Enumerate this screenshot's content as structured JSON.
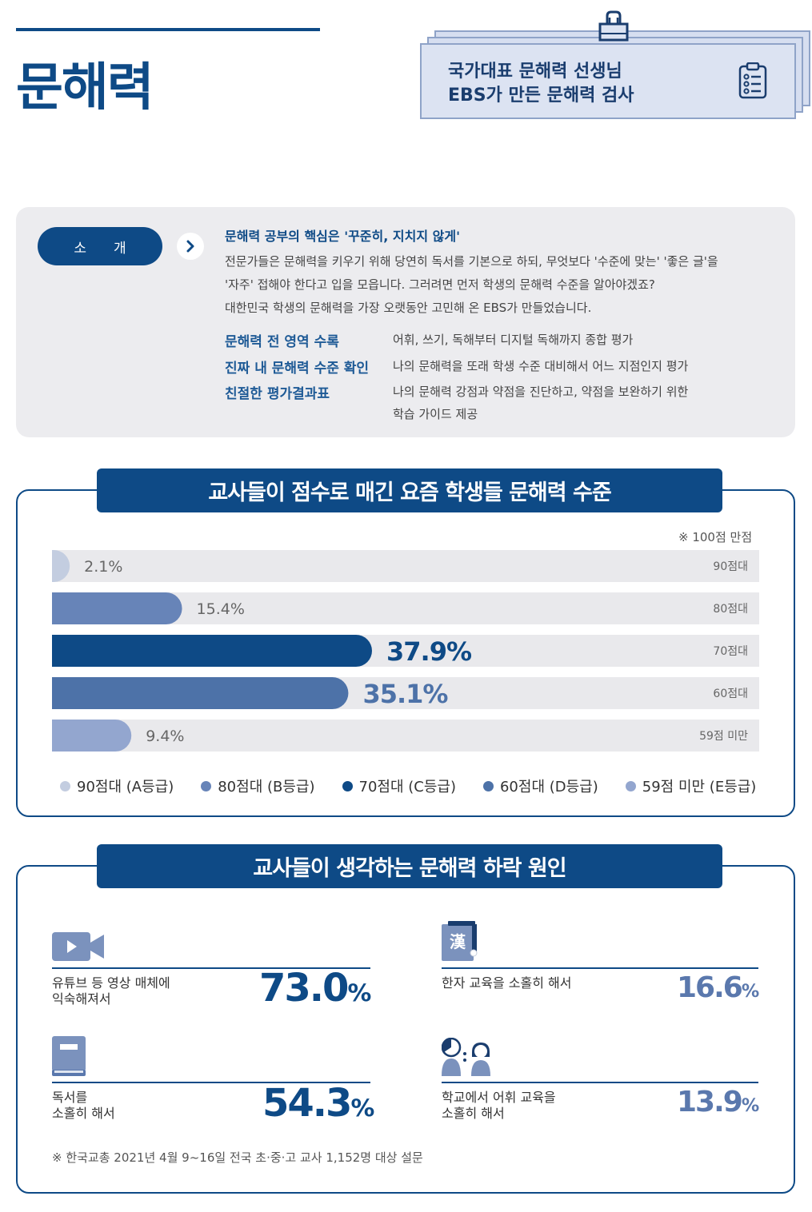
{
  "header": {
    "title": "문해력",
    "note_line1": "국가대표 문해력 선생님",
    "note_line2": "EBS가 만든 문해력 검사"
  },
  "intro": {
    "pill_label": "소개",
    "headline": "문해력 공부의 핵심은 '꾸준히, 지치지 않게'",
    "body_line1": "전문가들은 문해력을 키우기 위해 당연히 독서를 기본으로 하되, 무엇보다 '수준에 맞는'  '좋은 글'을",
    "body_line2": "'자주' 접해야 한다고 입을 모읍니다. 그러려면 먼저 학생의 문해력 수준을 알아야겠죠?",
    "body_line3": "대한민국 학생의 문해력을 가장 오랫동안 고민해 온 EBS가 만들었습니다.",
    "features": [
      {
        "title": "문해력 전 영역 수록",
        "desc": "어휘, 쓰기, 독해부터 디지털 독해까지 종합 평가"
      },
      {
        "title": "진짜 내 문해력 수준 확인",
        "desc": "나의 문해력을 또래 학생 수준 대비해서 어느 지점인지 평가"
      },
      {
        "title": "친절한 평가결과표",
        "desc": "나의 문해력 강점과 약점을 진단하고, 약점을 보완하기 위한",
        "desc2": "학습 가이드 제공"
      }
    ]
  },
  "section1": {
    "banner": "교사들이 점수로 매긴 요즘 학생들 문해력 수준",
    "note": "※ 100점 만점"
  },
  "chart_data": {
    "type": "bar",
    "orientation": "horizontal",
    "title": "교사들이 점수로 매긴 요즘 학생들 문해력 수준",
    "categories": [
      "90점대",
      "80점대",
      "70점대",
      "60점대",
      "59점 미만"
    ],
    "values": [
      2.1,
      15.4,
      37.9,
      35.1,
      9.4
    ],
    "value_labels": [
      "2.1%",
      "15.4%",
      "37.9%",
      "35.1%",
      "9.4%"
    ],
    "unit": "%",
    "xlim": [
      0,
      100
    ],
    "colors": [
      "#c3cde0",
      "#6784b8",
      "#0e4a86",
      "#4d72a8",
      "#93a6cf"
    ],
    "legend": [
      "90점대 (A등급)",
      "80점대 (B등급)",
      "70점대 (C등급)",
      "60점대 (D등급)",
      "59점 미만 (E등급)"
    ]
  },
  "section2": {
    "banner": "교사들이 생각하는 문해력 하락 원인",
    "causes": [
      {
        "label1": "유튜브 등 영상 매체에",
        "label2": "익숙해져서",
        "value": "73.0",
        "pct": "%"
      },
      {
        "label1": "한자 교육을 소홀히 해서",
        "label2": "",
        "value": "16.6",
        "pct": "%"
      },
      {
        "label1": "독서를",
        "label2": "소홀히 해서",
        "value": "54.3",
        "pct": "%"
      },
      {
        "label1": "학교에서 어휘 교육을",
        "label2": "소홀히 해서",
        "value": "13.9",
        "pct": "%"
      }
    ],
    "hanja_glyph": "漢",
    "footnote": "※ 한국교총 2021년 4월 9~16일 전국 초·중·고 교사 1,152명 대상 설문"
  },
  "icons": {
    "video": "video-camera-icon",
    "hanja": "hanja-book-icon",
    "book": "book-icon",
    "people": "people-talking-icon",
    "checklist": "checklist-icon",
    "binder": "binder-clip-icon"
  }
}
